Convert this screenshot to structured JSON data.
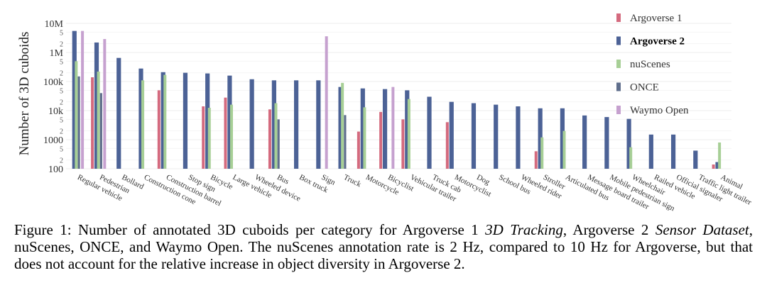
{
  "chart_data": {
    "type": "bar",
    "ylabel": "Number of 3D cuboids",
    "yscale": "log",
    "ylim": [
      100,
      10000000
    ],
    "major_ticks": [
      {
        "value": 100,
        "label": "100"
      },
      {
        "value": 1000,
        "label": "1000"
      },
      {
        "value": 10000,
        "label": "10k"
      },
      {
        "value": 100000,
        "label": "100k"
      },
      {
        "value": 1000000,
        "label": "1M"
      },
      {
        "value": 10000000,
        "label": "10M"
      }
    ],
    "minor_ticks": [
      {
        "value": 200,
        "label": "2"
      },
      {
        "value": 500,
        "label": "5"
      },
      {
        "value": 2000,
        "label": "2"
      },
      {
        "value": 5000,
        "label": "5"
      },
      {
        "value": 20000,
        "label": "2"
      },
      {
        "value": 50000,
        "label": "5"
      },
      {
        "value": 200000,
        "label": "2"
      },
      {
        "value": 500000,
        "label": "5"
      },
      {
        "value": 2000000,
        "label": "2"
      },
      {
        "value": 5000000,
        "label": "5"
      }
    ],
    "grid": true,
    "legend_position": "top-right",
    "categories": [
      "Regular vehicle",
      "Pedestrian",
      "Bollard",
      "Construction cone",
      "Construction barrel",
      "Stop sign",
      "Bicycle",
      "Large vehicle",
      "Wheeled device",
      "Bus",
      "Box truck",
      "Sign",
      "Truck",
      "Motorcycle",
      "Bicyclist",
      "Vehicular trailer",
      "Truck cab",
      "Motorcyclist",
      "Dog",
      "School bus",
      "Wheeled rider",
      "Stroller",
      "Articulated bus",
      "Message board trailer",
      "Mobile pedestrian sign",
      "Wheelchair",
      "Railed vehicle",
      "Official signaler",
      "Traffic light trailer",
      "Animal"
    ],
    "series": [
      {
        "name": "Argoverse 1",
        "color": "#d46a7e",
        "values": [
          null,
          140000,
          null,
          null,
          50000,
          null,
          14000,
          28000,
          null,
          11000,
          null,
          null,
          null,
          1900,
          9000,
          5000,
          null,
          4000,
          null,
          null,
          null,
          400,
          null,
          null,
          null,
          null,
          null,
          null,
          null,
          140
        ]
      },
      {
        "name": "Argoverse 2",
        "color": "#4c6296",
        "values": [
          5500000,
          2200000,
          650000,
          280000,
          210000,
          200000,
          190000,
          160000,
          120000,
          110000,
          110000,
          110000,
          65000,
          58000,
          55000,
          50000,
          30000,
          20000,
          18000,
          16000,
          14000,
          12000,
          12000,
          6800,
          6000,
          5200,
          1500,
          1500,
          420,
          170
        ]
      },
      {
        "name": "nuScenes",
        "color": "#a7cf96",
        "values": [
          500000,
          220000,
          null,
          110000,
          170000,
          null,
          12500,
          16000,
          null,
          18000,
          null,
          null,
          90000,
          13000,
          null,
          25000,
          null,
          null,
          null,
          null,
          null,
          1200,
          2000,
          null,
          null,
          550,
          null,
          null,
          null,
          800
        ]
      },
      {
        "name": "ONCE",
        "color": "#5f6e8c",
        "values": [
          150000,
          40000,
          null,
          null,
          null,
          null,
          null,
          null,
          null,
          5000,
          null,
          null,
          7000,
          null,
          null,
          null,
          null,
          null,
          null,
          null,
          null,
          null,
          null,
          null,
          null,
          null,
          null,
          null,
          null,
          null
        ]
      },
      {
        "name": "Waymo Open",
        "color": "#c6a1cf",
        "values": [
          5500000,
          2900000,
          null,
          null,
          null,
          null,
          null,
          null,
          null,
          null,
          null,
          3600000,
          null,
          null,
          65000,
          null,
          null,
          null,
          null,
          null,
          null,
          null,
          null,
          null,
          null,
          null,
          null,
          null,
          null,
          null
        ]
      }
    ],
    "legend": [
      {
        "name": "Argoverse 1",
        "color": "#d46a7e",
        "bold": false
      },
      {
        "name": "Argoverse 2",
        "color": "#4c6296",
        "bold": true
      },
      {
        "name": "nuScenes",
        "color": "#a7cf96",
        "bold": false
      },
      {
        "name": "ONCE",
        "color": "#5f6e8c",
        "bold": false
      },
      {
        "name": "Waymo Open",
        "color": "#c6a1cf",
        "bold": false
      }
    ]
  },
  "caption": {
    "prefix": "Figure 1: Number of annotated 3D cuboids per category for Argoverse 1 ",
    "italic1": "3D Tracking",
    "mid1": ", Argoverse 2 ",
    "italic2": "Sensor Dataset",
    "rest": ", nuScenes, ONCE, and Waymo Open.  The nuScenes annotation rate is 2 Hz, compared to 10 Hz for Argoverse, but that does not account for the relative increase in object diversity in Argoverse 2."
  }
}
